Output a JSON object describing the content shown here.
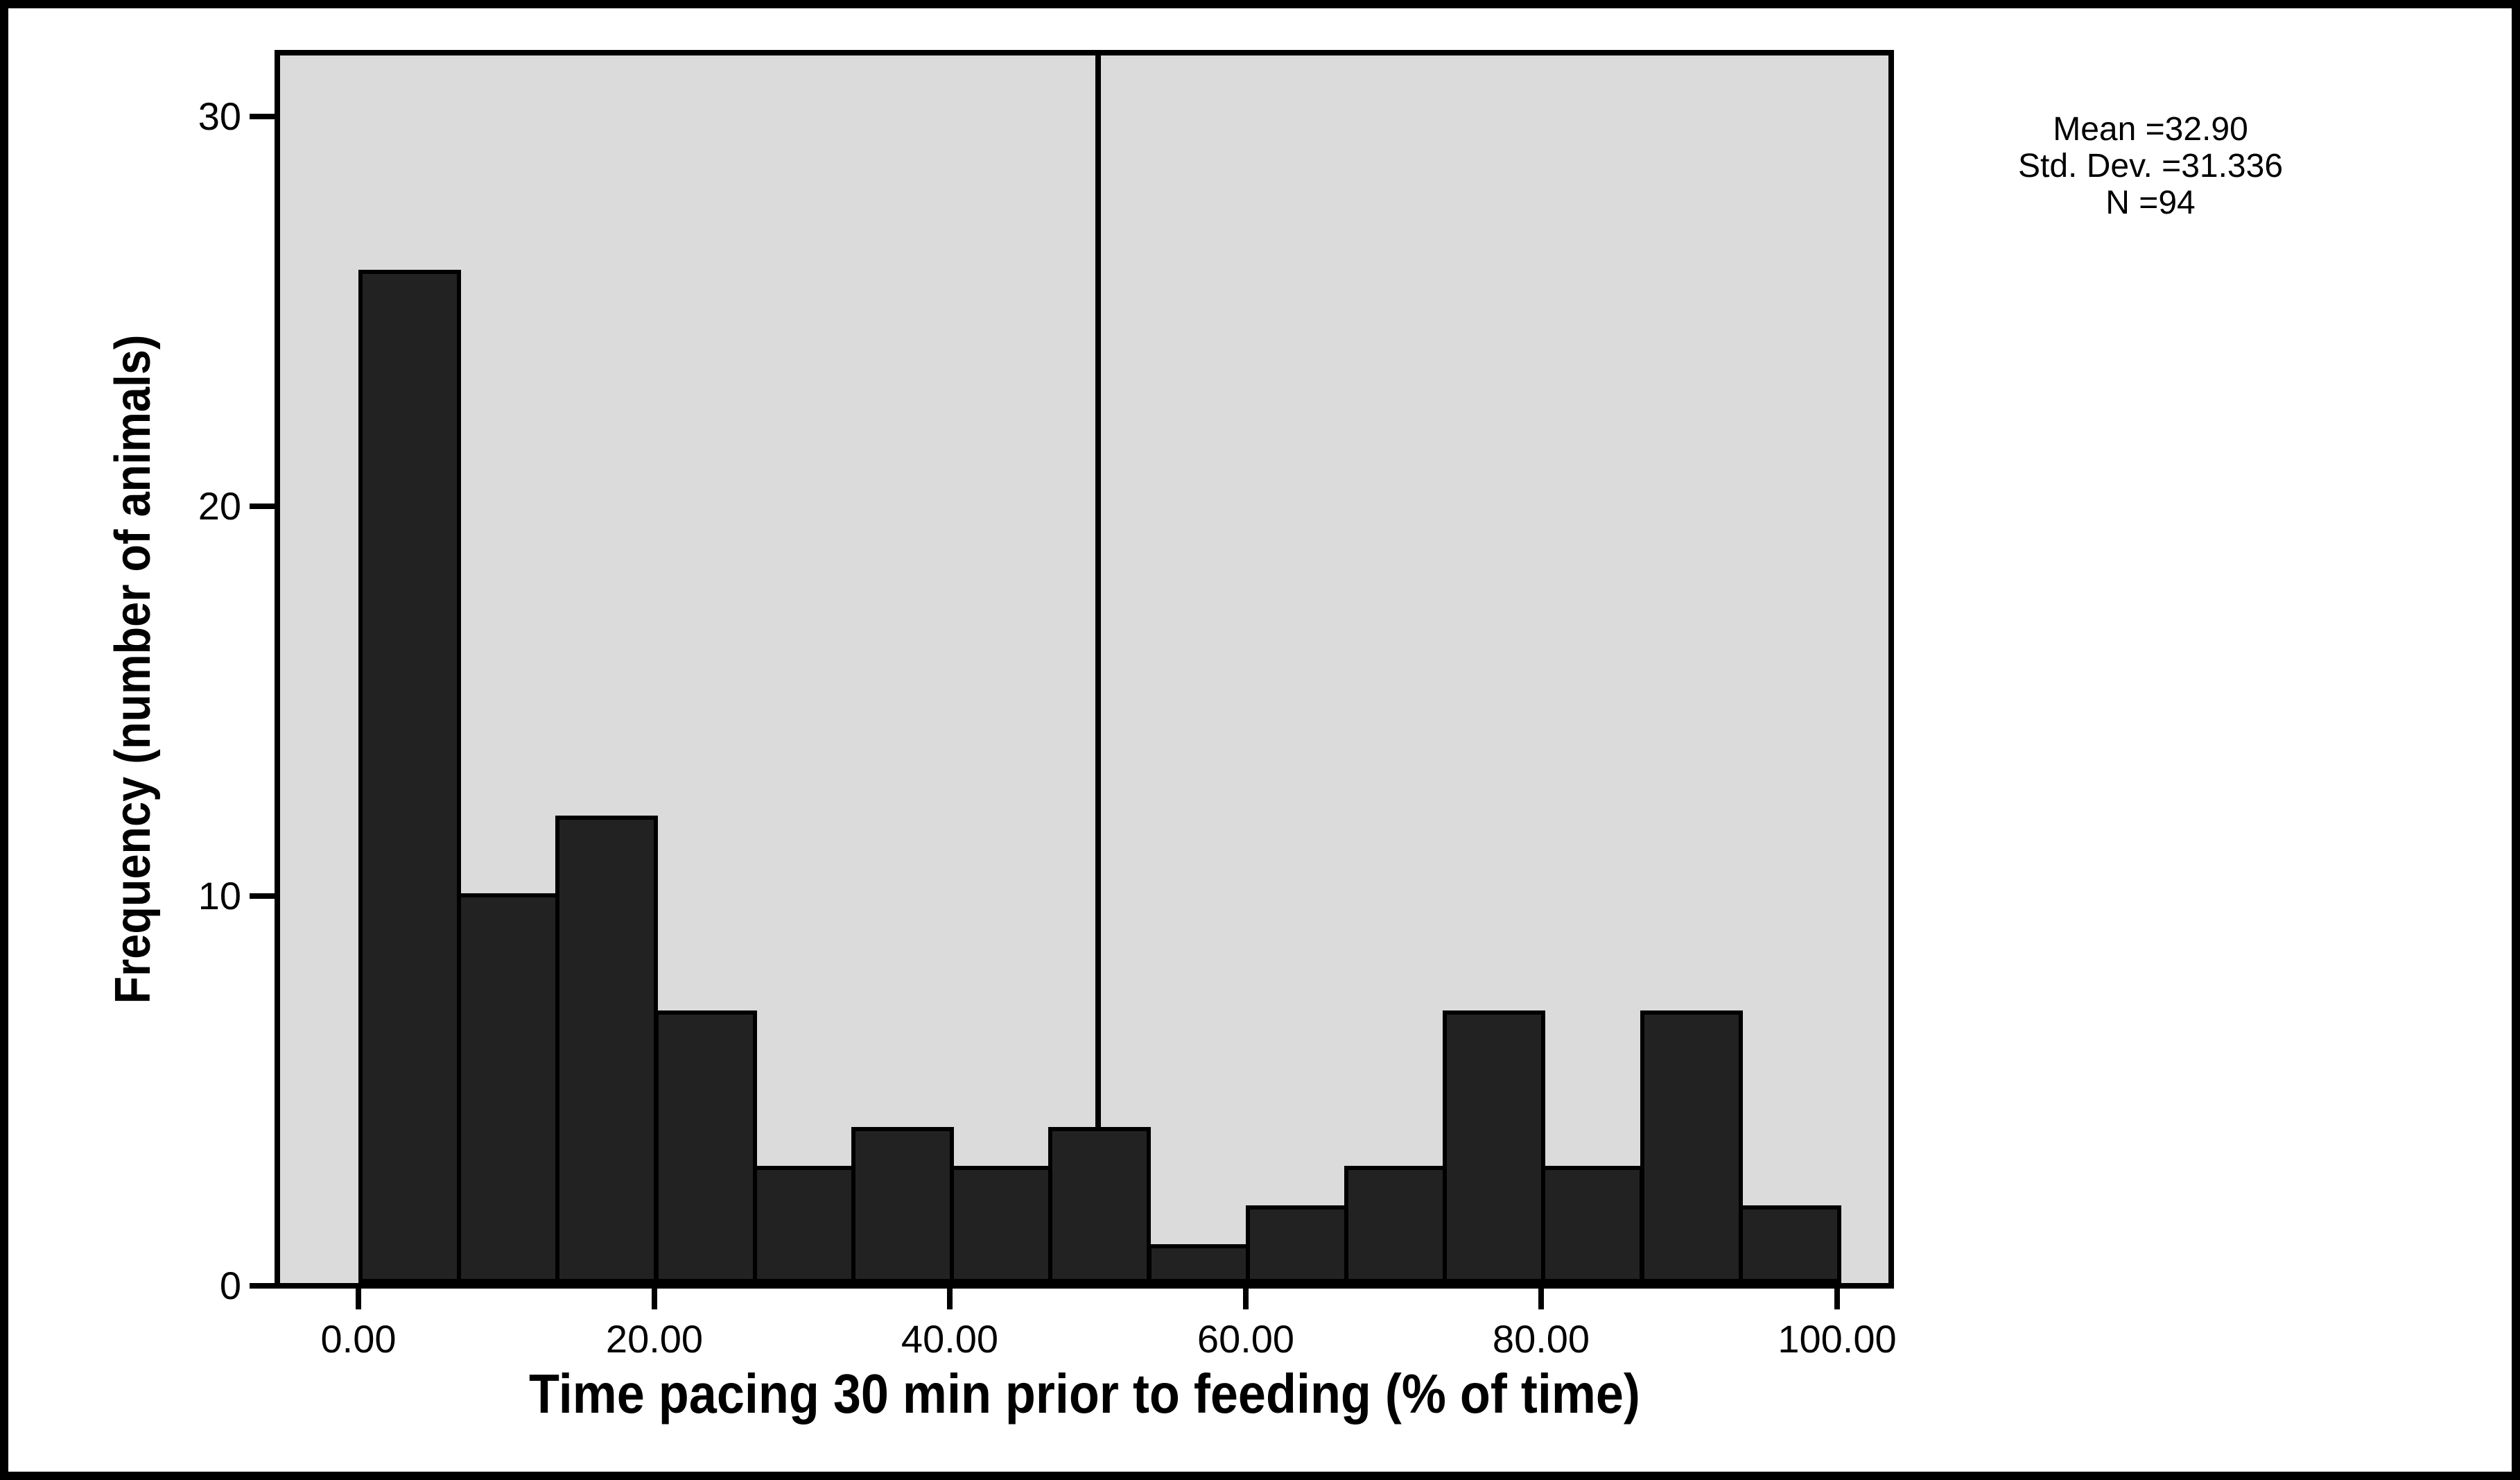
{
  "figure": {
    "background": "#ffffff",
    "border_color": "#000000"
  },
  "chart_data": {
    "type": "bar",
    "subtype": "histogram",
    "title": "",
    "xlabel": "Time pacing 30 min prior to feeding (% of time)",
    "ylabel": "Frequency (number of animals)",
    "bin_start": 0,
    "bin_width": 6.6667,
    "values": [
      26,
      10,
      12,
      7,
      3,
      4,
      3,
      4,
      1,
      2,
      3,
      7,
      3,
      7,
      2
    ],
    "bin_edges": [
      0,
      6.67,
      13.33,
      20,
      26.67,
      33.33,
      40,
      46.67,
      53.33,
      60,
      66.67,
      73.33,
      80,
      86.67,
      93.33,
      100
    ],
    "n_total": 94,
    "x_ticks": [
      {
        "value": 0,
        "label": "0.00"
      },
      {
        "value": 20,
        "label": "20.00"
      },
      {
        "value": 40,
        "label": "40.00"
      },
      {
        "value": 60,
        "label": "60.00"
      },
      {
        "value": 80,
        "label": "80.00"
      },
      {
        "value": 100,
        "label": "100.00"
      }
    ],
    "y_ticks": [
      {
        "value": 0,
        "label": "0"
      },
      {
        "value": 10,
        "label": "10"
      },
      {
        "value": 20,
        "label": "20"
      },
      {
        "value": 30,
        "label": "30"
      }
    ],
    "xlim": [
      -5.3,
      103.5
    ],
    "ylim": [
      0,
      31.5
    ],
    "reference_line_x": 50,
    "grid": false,
    "legend": null,
    "plot_bg": "#dbdbdb",
    "bar_fill": "#222222",
    "bar_stroke": "#000000",
    "annotation": {
      "lines": [
        "Mean =32.90",
        "Std. Dev. =31.336",
        "N =94"
      ]
    }
  }
}
